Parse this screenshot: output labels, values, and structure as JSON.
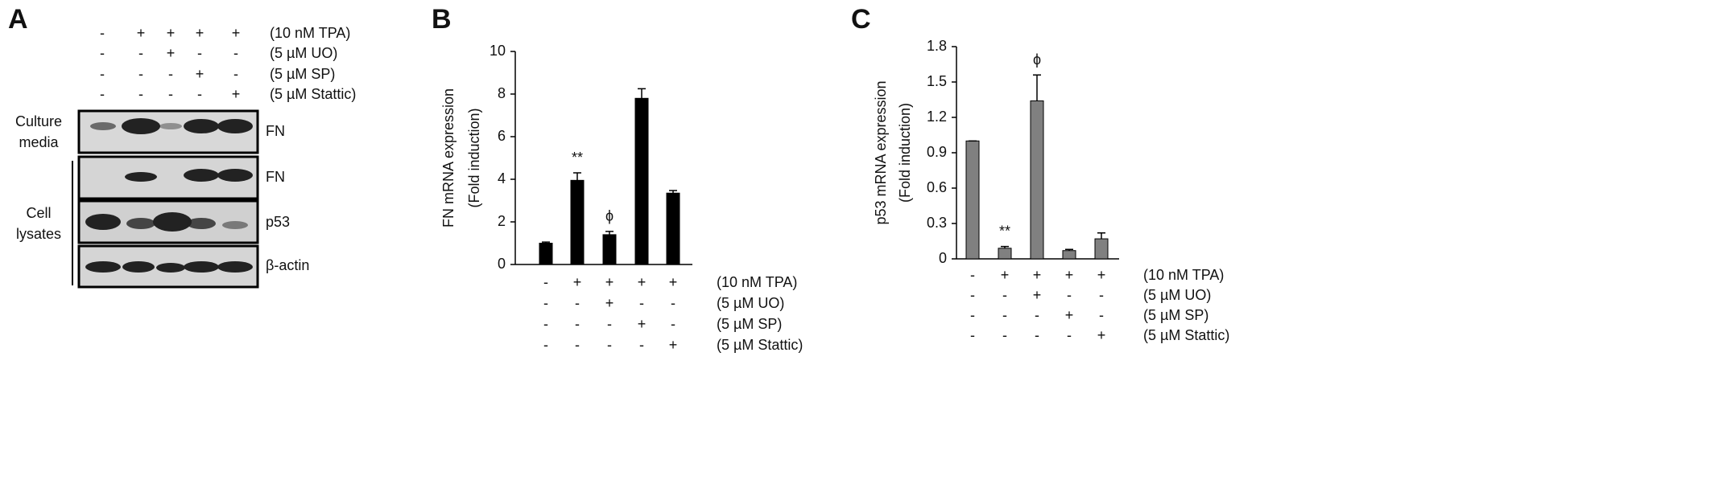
{
  "panel_a": {
    "label": "A",
    "treatments": [
      {
        "label": "(10 nM TPA)",
        "signs": [
          "-",
          "+",
          "+",
          "+",
          "+"
        ]
      },
      {
        "label": "(5 µM UO)",
        "signs": [
          "-",
          "-",
          "+",
          "-",
          "-"
        ]
      },
      {
        "label": "(5 µM SP)",
        "signs": [
          "-",
          "-",
          "-",
          "+",
          "-"
        ]
      },
      {
        "label": "(5 µM Stattic)",
        "signs": [
          "-",
          "-",
          "-",
          "-",
          "+"
        ]
      }
    ],
    "groups": [
      {
        "label_lines": [
          "Culture",
          "media"
        ],
        "blots": [
          "FN"
        ]
      },
      {
        "label_lines": [
          "Cell",
          "lysates"
        ],
        "blots": [
          "FN",
          "p53",
          "β-actin"
        ]
      }
    ]
  },
  "chart_data": [
    {
      "type": "bar",
      "panel": "B",
      "ylabel": [
        "FN mRNA expression",
        "(Fold induction)"
      ],
      "color": "#000000",
      "values": [
        1,
        3.95,
        1.4,
        7.8,
        3.35
      ],
      "errors": [
        0.05,
        0.35,
        0.15,
        0.45,
        0.12
      ],
      "value_annotations": [
        null,
        "**",
        "ϕ",
        null,
        null
      ],
      "ylim": [
        0,
        10
      ],
      "yticks": [
        0,
        2,
        4,
        6,
        8,
        10
      ],
      "treatments": [
        {
          "label": "(10 nM TPA)",
          "signs": [
            "-",
            "+",
            "+",
            "+",
            "+"
          ]
        },
        {
          "label": "(5 µM UO)",
          "signs": [
            "-",
            "-",
            "+",
            "-",
            "-"
          ]
        },
        {
          "label": "(5 µM SP)",
          "signs": [
            "-",
            "-",
            "-",
            "+",
            "-"
          ]
        },
        {
          "label": "(5 µM Stattic)",
          "signs": [
            "-",
            "-",
            "-",
            "-",
            "+"
          ]
        }
      ]
    },
    {
      "type": "bar",
      "panel": "C",
      "ylabel": [
        "p53 mRNA expression",
        "(Fold induction)"
      ],
      "color": "#808080",
      "values": [
        1,
        0.09,
        1.34,
        0.07,
        0.17
      ],
      "errors": [
        0,
        0.015,
        0.22,
        0.01,
        0.05
      ],
      "value_annotations": [
        null,
        "**",
        "ϕ",
        null,
        null
      ],
      "ylim": [
        0,
        1.8
      ],
      "yticks": [
        0,
        0.3,
        0.6,
        0.9,
        1.2,
        1.5,
        1.8
      ],
      "treatments": [
        {
          "label": "(10 nM TPA)",
          "signs": [
            "-",
            "+",
            "+",
            "+",
            "+"
          ]
        },
        {
          "label": "(5 µM UO)",
          "signs": [
            "-",
            "-",
            "+",
            "-",
            "-"
          ]
        },
        {
          "label": "(5 µM SP)",
          "signs": [
            "-",
            "-",
            "-",
            "+",
            "-"
          ]
        },
        {
          "label": "(5 µM Stattic)",
          "signs": [
            "-",
            "-",
            "-",
            "-",
            "+"
          ]
        }
      ]
    }
  ]
}
